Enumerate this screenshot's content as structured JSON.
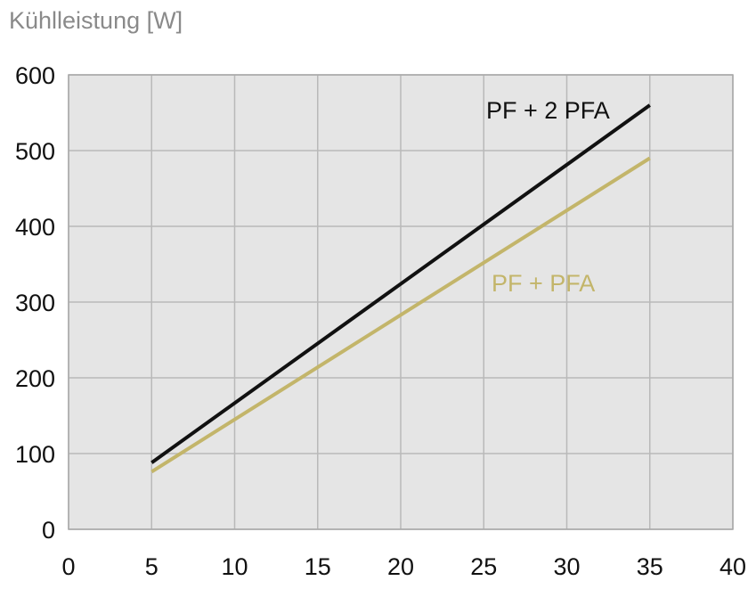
{
  "chart_data": {
    "type": "line",
    "title": "",
    "xlabel": "",
    "ylabel": "Kühlleistung [W]",
    "xlim": [
      0,
      40
    ],
    "ylim": [
      0,
      600
    ],
    "x_ticks": [
      "0",
      "5",
      "10",
      "15",
      "20",
      "25",
      "30",
      "35",
      "40"
    ],
    "y_ticks": [
      "0",
      "100",
      "200",
      "300",
      "400",
      "500",
      "600"
    ],
    "grid": true,
    "plot_background": "#e5e5e5",
    "grid_color": "#b9b9b9",
    "series": [
      {
        "name": "PF + 2 PFA",
        "color": "#111111",
        "x": [
          5,
          35
        ],
        "y": [
          88,
          560
        ]
      },
      {
        "name": "PF + PFA",
        "color": "#c3b56a",
        "x": [
          5,
          35
        ],
        "y": [
          76,
          490
        ]
      }
    ]
  }
}
